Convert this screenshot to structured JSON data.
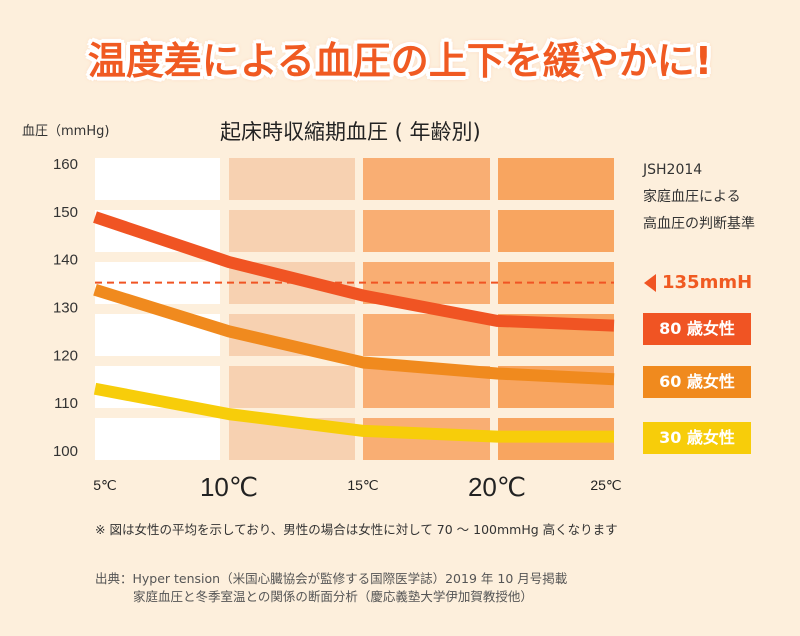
{
  "headline": "温度差による血圧の上下を緩やかに!",
  "chart_data": {
    "type": "line",
    "title": "起床時収縮期血圧 ( 年齢別)",
    "ylabel": "血圧（mmHg)",
    "xlabel": "",
    "x": [
      5,
      10,
      15,
      20,
      25
    ],
    "x_tick_labels": [
      "5℃",
      "10℃",
      "15℃",
      "20℃",
      "25℃"
    ],
    "y_ticks": [
      160,
      150,
      140,
      130,
      120,
      110,
      100
    ],
    "ylim": [
      100,
      160
    ],
    "series": [
      {
        "name": "80 歳女性",
        "color": "#f05423",
        "values": [
          148.7,
          139.3,
          132.3,
          127,
          126
        ]
      },
      {
        "name": "60 歳女性",
        "color": "#f08a1e",
        "values": [
          133.5,
          124.8,
          118.3,
          116,
          114.8
        ]
      },
      {
        "name": "30 歳女性",
        "color": "#f7cd0a",
        "values": [
          112.8,
          107.5,
          104,
          102.8,
          102.8
        ]
      }
    ],
    "reference_line": {
      "value": 135,
      "label": "135mmH",
      "color": "#f05423"
    },
    "reference_note": [
      "JSH2014",
      "家庭血圧による",
      "高血圧の判断基準"
    ],
    "legend": "right",
    "band_colors": [
      "#ffffff",
      "#f7d1b1",
      "#f9ae73",
      "#f8a560"
    ]
  },
  "note": "※ 図は女性の平均を示しており、男性の場合は女性に対して 70 ～ 100mmHg 高くなります",
  "source": {
    "line1": "出典：Hyper tension（米国心臓協会が監修する国際医学誌）2019 年 10 月号掲載",
    "line2": "家庭血圧と冬季室温との関係の断面分析（慶応義塾大学伊加賀教授他）"
  }
}
